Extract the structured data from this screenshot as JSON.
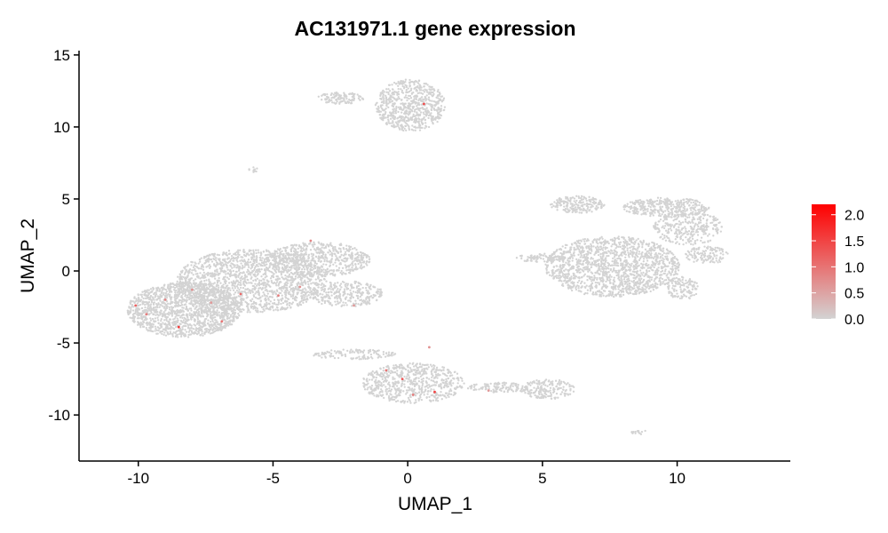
{
  "chart_data": {
    "type": "scatter",
    "title": "AC131971.1 gene expression",
    "xlabel": "UMAP_1",
    "ylabel": "UMAP_2",
    "xlim": [
      -12.2,
      14.2
    ],
    "ylim": [
      -13.2,
      15.3
    ],
    "x_ticks": [
      -10,
      -5,
      0,
      5,
      10
    ],
    "y_ticks": [
      -10,
      -5,
      0,
      5,
      10,
      15
    ],
    "grid": false,
    "base_color": "#d3d3d3",
    "high_color": "#ff0000",
    "legend": {
      "placement": "right",
      "type": "colorbar",
      "min": 0.0,
      "max": 2.2,
      "ticks": [
        "0.0",
        "0.5",
        "1.0",
        "1.5",
        "2.0"
      ]
    },
    "clusters": [
      {
        "cx": 0.1,
        "cy": 11.5,
        "rx": 1.3,
        "ry": 1.8,
        "n": 700
      },
      {
        "cx": -2.5,
        "cy": 12.0,
        "rx": 0.9,
        "ry": 0.4,
        "n": 120
      },
      {
        "cx": -5.7,
        "cy": 7.0,
        "rx": 0.2,
        "ry": 0.2,
        "n": 10
      },
      {
        "cx": -8.3,
        "cy": -2.7,
        "rx": 2.1,
        "ry": 1.9,
        "n": 1500
      },
      {
        "cx": -5.8,
        "cy": -0.7,
        "rx": 2.8,
        "ry": 2.2,
        "n": 1600
      },
      {
        "cx": -3.3,
        "cy": 0.8,
        "rx": 1.9,
        "ry": 1.2,
        "n": 600
      },
      {
        "cx": -2.3,
        "cy": -1.6,
        "rx": 1.4,
        "ry": 0.9,
        "n": 300
      },
      {
        "cx": -2.0,
        "cy": -5.8,
        "rx": 1.6,
        "ry": 0.35,
        "n": 130
      },
      {
        "cx": 0.2,
        "cy": -7.8,
        "rx": 1.9,
        "ry": 1.4,
        "n": 650
      },
      {
        "cx": 3.4,
        "cy": -8.1,
        "rx": 1.2,
        "ry": 0.35,
        "n": 120
      },
      {
        "cx": 5.2,
        "cy": -8.2,
        "rx": 1.0,
        "ry": 0.7,
        "n": 180
      },
      {
        "cx": 8.6,
        "cy": -11.2,
        "rx": 0.3,
        "ry": 0.15,
        "n": 15
      },
      {
        "cx": 7.6,
        "cy": 0.3,
        "rx": 2.5,
        "ry": 2.1,
        "n": 1500
      },
      {
        "cx": 6.3,
        "cy": 4.6,
        "rx": 1.0,
        "ry": 0.6,
        "n": 200
      },
      {
        "cx": 9.6,
        "cy": 4.4,
        "rx": 1.6,
        "ry": 0.7,
        "n": 350
      },
      {
        "cx": 10.4,
        "cy": 3.0,
        "rx": 1.3,
        "ry": 1.2,
        "n": 300
      },
      {
        "cx": 11.1,
        "cy": 1.1,
        "rx": 0.8,
        "ry": 0.6,
        "n": 120
      },
      {
        "cx": 10.2,
        "cy": -1.2,
        "rx": 0.6,
        "ry": 0.8,
        "n": 120
      },
      {
        "cx": 4.9,
        "cy": 0.9,
        "rx": 0.9,
        "ry": 0.3,
        "n": 80
      }
    ],
    "expressed_points": [
      {
        "x": 0.6,
        "y": 11.6,
        "value": 1.4
      },
      {
        "x": -10.1,
        "y": -2.4,
        "value": 1.2
      },
      {
        "x": -9.7,
        "y": -3.0,
        "value": 0.9
      },
      {
        "x": -9.0,
        "y": -2.0,
        "value": 0.8
      },
      {
        "x": -8.5,
        "y": -3.9,
        "value": 1.6
      },
      {
        "x": -8.0,
        "y": -1.3,
        "value": 0.7
      },
      {
        "x": -7.3,
        "y": -2.2,
        "value": 0.6
      },
      {
        "x": -6.9,
        "y": -3.5,
        "value": 1.0
      },
      {
        "x": -6.2,
        "y": -1.6,
        "value": 1.1
      },
      {
        "x": -4.8,
        "y": -1.7,
        "value": 0.9
      },
      {
        "x": -4.0,
        "y": -1.1,
        "value": 0.7
      },
      {
        "x": -3.6,
        "y": 2.1,
        "value": 0.8
      },
      {
        "x": -2.0,
        "y": -2.4,
        "value": 0.6
      },
      {
        "x": -0.8,
        "y": -6.9,
        "value": 1.0
      },
      {
        "x": -0.2,
        "y": -7.5,
        "value": 1.3
      },
      {
        "x": 0.8,
        "y": -5.3,
        "value": 0.7
      },
      {
        "x": 1.0,
        "y": -8.4,
        "value": 1.5
      },
      {
        "x": 0.2,
        "y": -8.6,
        "value": 0.9
      },
      {
        "x": 3.0,
        "y": -8.3,
        "value": 0.6
      }
    ]
  }
}
